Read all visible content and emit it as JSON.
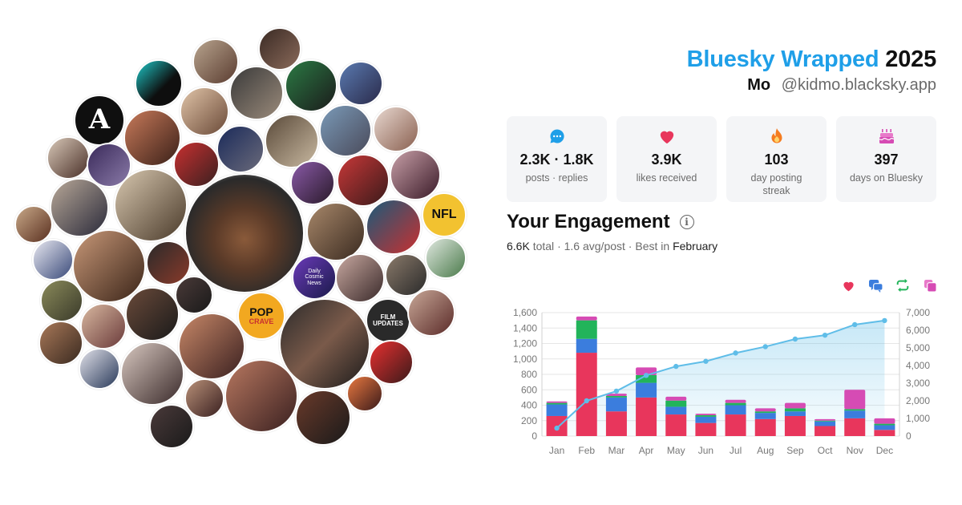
{
  "header": {
    "brand": "Bluesky Wrapped",
    "year": "2025",
    "display_name": "Mo",
    "handle": "@kidmo.blacksky.app"
  },
  "avatar_labels": {
    "letter": "A",
    "nfl": "NFL",
    "pop_crave_1": "POP",
    "pop_crave_2": "CRAVE",
    "daily_cosmic": "Daily Cosmic News",
    "film_updates": "FILM UPDATES"
  },
  "stats": [
    {
      "icon": "chat-bubble-icon",
      "value": "2.3K · 1.8K",
      "label": "posts · replies"
    },
    {
      "icon": "heart-icon",
      "value": "3.9K",
      "label": "likes received"
    },
    {
      "icon": "flame-icon",
      "value": "103",
      "label": "day posting streak"
    },
    {
      "icon": "cake-icon",
      "value": "397",
      "label": "days on Bluesky"
    }
  ],
  "engagement": {
    "title": "Your Engagement",
    "total": "6.6K",
    "total_suffix": "total",
    "avg": "1.6 avg/post",
    "best_prefix": "Best in",
    "best_month": "February"
  },
  "colors": {
    "brand": "#1f9fe8",
    "likes": "#e8365c",
    "replies": "#3b7ddd",
    "reposts": "#22b45a",
    "quotes": "#d64bb4",
    "cumulative": "#5fbde8"
  },
  "toggles": [
    {
      "name": "likes-toggle",
      "icon": "heart-icon"
    },
    {
      "name": "replies-toggle",
      "icon": "reply-icon"
    },
    {
      "name": "reposts-toggle",
      "icon": "repost-icon"
    },
    {
      "name": "quotes-toggle",
      "icon": "quote-icon"
    }
  ],
  "chart_data": {
    "type": "bar",
    "categories": [
      "Jan",
      "Feb",
      "Mar",
      "Apr",
      "May",
      "Jun",
      "Jul",
      "Aug",
      "Sep",
      "Oct",
      "Nov",
      "Dec"
    ],
    "series": [
      {
        "values": [
          260,
          1080,
          320,
          500,
          280,
          170,
          280,
          220,
          260,
          130,
          230,
          80
        ]
      },
      {
        "values": [
          150,
          180,
          180,
          190,
          100,
          80,
          120,
          80,
          60,
          60,
          100,
          60
        ]
      },
      {
        "values": [
          20,
          240,
          20,
          100,
          80,
          20,
          30,
          20,
          40,
          10,
          20,
          20
        ]
      },
      {
        "values": [
          20,
          50,
          30,
          100,
          50,
          20,
          40,
          40,
          70,
          20,
          250,
          70
        ]
      }
    ],
    "cumulative": [
      450,
      2000,
      2550,
      3440,
      3950,
      4240,
      4710,
      5070,
      5500,
      5720,
      6320,
      6550
    ],
    "ylim": [
      0,
      1600
    ],
    "yticks": [
      "0",
      "200",
      "400",
      "600",
      "800",
      "1,000",
      "1,200",
      "1,400",
      "1,600"
    ],
    "y2lim": [
      0,
      7000
    ],
    "y2ticks": [
      "0",
      "1,000",
      "2,000",
      "3,000",
      "4,000",
      "5,000",
      "6,000",
      "7,000"
    ],
    "grid": true
  }
}
